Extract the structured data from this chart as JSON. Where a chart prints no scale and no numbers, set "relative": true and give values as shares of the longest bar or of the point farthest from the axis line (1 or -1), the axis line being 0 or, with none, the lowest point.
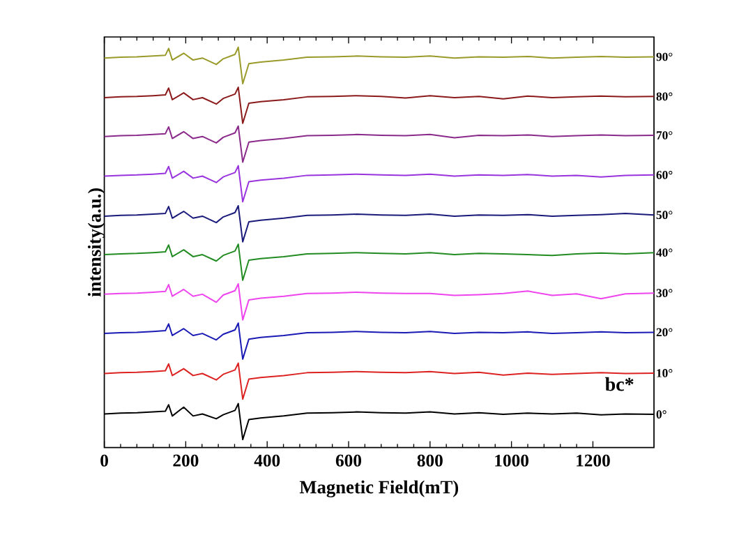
{
  "chart_data": {
    "type": "line",
    "relative": true,
    "xlabel": "Magnetic Field(mT)",
    "ylabel": "intensity(a.u.)",
    "xlim": [
      0,
      1350
    ],
    "xticks": [
      0,
      200,
      400,
      600,
      800,
      1000,
      1200
    ],
    "annotations": [
      "bc*"
    ],
    "x": [
      0,
      40,
      80,
      120,
      150,
      158,
      167,
      195,
      218,
      241,
      275,
      292,
      321,
      329,
      340,
      355,
      384,
      441,
      498,
      560,
      620,
      680,
      740,
      800,
      860,
      920,
      980,
      1040,
      1100,
      1160,
      1220,
      1280,
      1350
    ],
    "series": [
      {
        "name": "0°",
        "color": "#000000",
        "values": [
          0.084,
          0.086,
          0.087,
          0.089,
          0.091,
          0.107,
          0.079,
          0.101,
          0.079,
          0.084,
          0.072,
          0.082,
          0.093,
          0.11,
          0.02,
          0.07,
          0.074,
          0.079,
          0.086,
          0.087,
          0.089,
          0.087,
          0.086,
          0.089,
          0.084,
          0.087,
          0.083,
          0.086,
          0.084,
          0.086,
          0.082,
          0.084,
          0.083
        ]
      },
      {
        "name": "10°",
        "color": "#dd2222",
        "values": [
          0.185,
          0.187,
          0.188,
          0.19,
          0.192,
          0.209,
          0.18,
          0.197,
          0.18,
          0.185,
          0.169,
          0.183,
          0.194,
          0.211,
          0.121,
          0.171,
          0.175,
          0.18,
          0.187,
          0.188,
          0.19,
          0.188,
          0.187,
          0.19,
          0.185,
          0.188,
          0.181,
          0.186,
          0.183,
          0.185,
          0.187,
          0.185,
          0.186
        ]
      },
      {
        "name": "20°",
        "color": "#1a1ab4",
        "values": [
          0.285,
          0.287,
          0.288,
          0.29,
          0.292,
          0.309,
          0.28,
          0.297,
          0.28,
          0.285,
          0.269,
          0.283,
          0.294,
          0.311,
          0.221,
          0.271,
          0.275,
          0.28,
          0.287,
          0.288,
          0.29,
          0.288,
          0.287,
          0.29,
          0.285,
          0.288,
          0.287,
          0.289,
          0.285,
          0.287,
          0.289,
          0.287,
          0.288
        ]
      },
      {
        "name": "30°",
        "color": "#ee44ee",
        "values": [
          0.383,
          0.385,
          0.386,
          0.388,
          0.39,
          0.407,
          0.378,
          0.395,
          0.378,
          0.383,
          0.363,
          0.381,
          0.392,
          0.409,
          0.319,
          0.369,
          0.373,
          0.378,
          0.385,
          0.386,
          0.388,
          0.386,
          0.385,
          0.385,
          0.38,
          0.382,
          0.385,
          0.391,
          0.38,
          0.384,
          0.372,
          0.384,
          0.386
        ]
      },
      {
        "name": "40°",
        "color": "#228b22",
        "values": [
          0.482,
          0.484,
          0.485,
          0.487,
          0.489,
          0.506,
          0.477,
          0.494,
          0.477,
          0.482,
          0.466,
          0.48,
          0.491,
          0.508,
          0.418,
          0.468,
          0.472,
          0.477,
          0.484,
          0.485,
          0.487,
          0.485,
          0.484,
          0.487,
          0.482,
          0.485,
          0.484,
          0.482,
          0.48,
          0.484,
          0.486,
          0.484,
          0.487
        ]
      },
      {
        "name": "50°",
        "color": "#1a1a7a",
        "values": [
          0.578,
          0.58,
          0.581,
          0.583,
          0.585,
          0.602,
          0.573,
          0.59,
          0.573,
          0.578,
          0.562,
          0.576,
          0.587,
          0.604,
          0.514,
          0.564,
          0.568,
          0.573,
          0.58,
          0.581,
          0.583,
          0.581,
          0.58,
          0.583,
          0.578,
          0.581,
          0.58,
          0.582,
          0.578,
          0.58,
          0.582,
          0.585,
          0.581
        ]
      },
      {
        "name": "60°",
        "color": "#9933dd",
        "values": [
          0.678,
          0.68,
          0.681,
          0.683,
          0.685,
          0.702,
          0.673,
          0.69,
          0.673,
          0.678,
          0.662,
          0.676,
          0.687,
          0.704,
          0.614,
          0.664,
          0.668,
          0.673,
          0.68,
          0.681,
          0.683,
          0.681,
          0.68,
          0.683,
          0.678,
          0.681,
          0.68,
          0.682,
          0.678,
          0.68,
          0.676,
          0.68,
          0.681
        ]
      },
      {
        "name": "70°",
        "color": "#8a2a8a",
        "values": [
          0.777,
          0.779,
          0.78,
          0.782,
          0.784,
          0.801,
          0.772,
          0.789,
          0.772,
          0.777,
          0.761,
          0.775,
          0.786,
          0.803,
          0.713,
          0.763,
          0.767,
          0.772,
          0.779,
          0.78,
          0.782,
          0.78,
          0.779,
          0.782,
          0.774,
          0.78,
          0.779,
          0.781,
          0.777,
          0.779,
          0.781,
          0.779,
          0.78
        ]
      },
      {
        "name": "80°",
        "color": "#8b1a1a",
        "values": [
          0.874,
          0.876,
          0.877,
          0.879,
          0.881,
          0.898,
          0.869,
          0.886,
          0.869,
          0.874,
          0.858,
          0.872,
          0.883,
          0.9,
          0.81,
          0.86,
          0.864,
          0.869,
          0.876,
          0.877,
          0.879,
          0.877,
          0.873,
          0.879,
          0.874,
          0.877,
          0.871,
          0.878,
          0.874,
          0.876,
          0.878,
          0.876,
          0.877
        ]
      },
      {
        "name": "90°",
        "color": "#9a9a2a",
        "values": [
          0.973,
          0.975,
          0.976,
          0.978,
          0.98,
          0.997,
          0.968,
          0.985,
          0.968,
          0.973,
          0.957,
          0.971,
          0.982,
          1.0,
          0.909,
          0.959,
          0.963,
          0.968,
          0.975,
          0.976,
          0.978,
          0.976,
          0.975,
          0.978,
          0.973,
          0.976,
          0.975,
          0.977,
          0.973,
          0.975,
          0.977,
          0.975,
          0.976
        ]
      }
    ]
  }
}
